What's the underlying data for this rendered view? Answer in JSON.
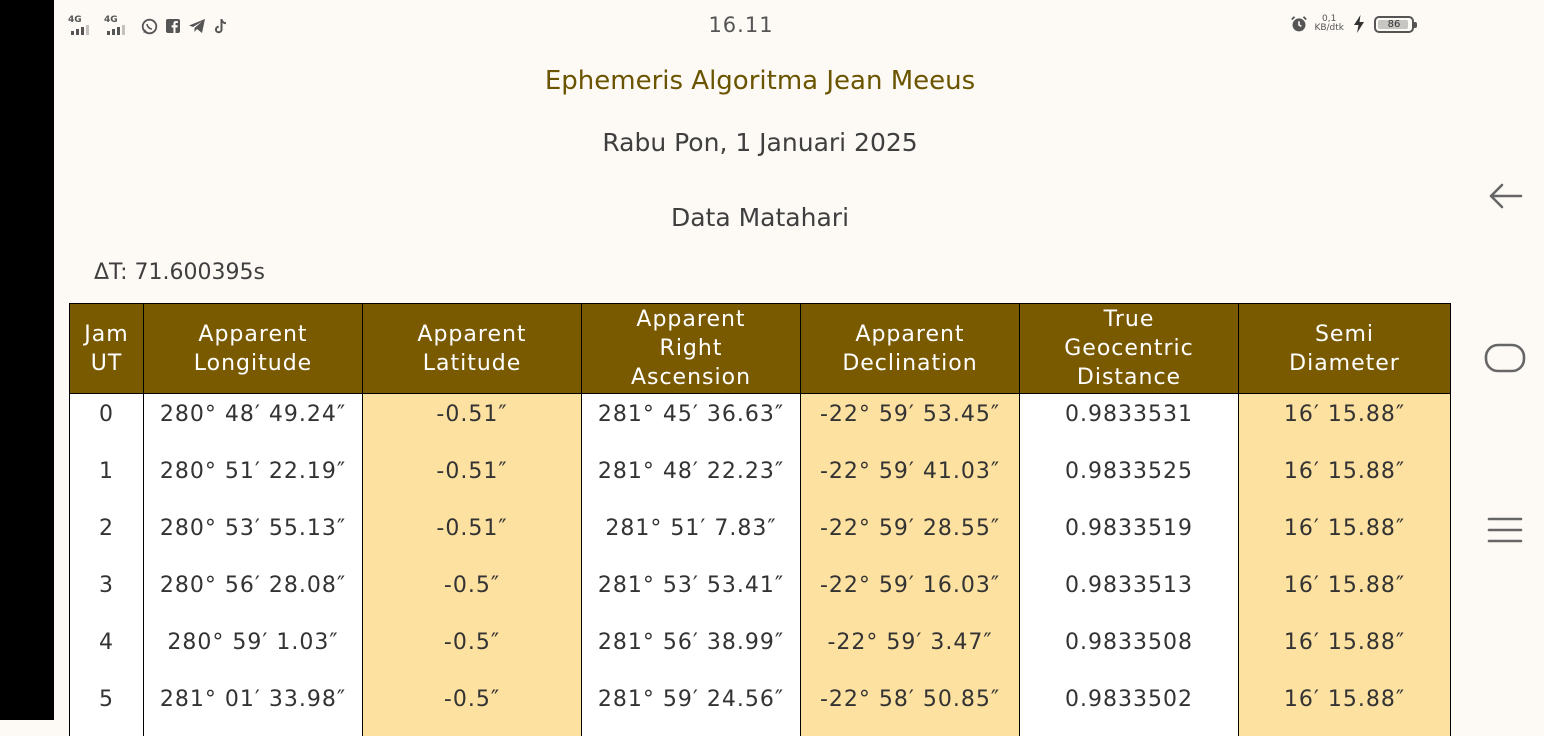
{
  "status_bar": {
    "time": "16.11",
    "network_1": "4G",
    "network_2": "4G",
    "speed_value": "0,1",
    "speed_unit": "KB/dtk",
    "battery": "86"
  },
  "app": {
    "title": "Ephemeris Algoritma Jean Meeus",
    "date": "Rabu Pon, 1 Januari 2025",
    "section": "Data Matahari",
    "delta_t": "ΔT: 71.600395s"
  },
  "table": {
    "headers": [
      [
        "Jam",
        "UT"
      ],
      [
        "Apparent",
        "Longitude"
      ],
      [
        "Apparent",
        "Latitude"
      ],
      [
        "Apparent",
        "Right",
        "Ascension"
      ],
      [
        "Apparent",
        "Declination"
      ],
      [
        "True",
        "Geocentric",
        "Distance"
      ],
      [
        "Semi",
        "Diameter"
      ]
    ],
    "rows": [
      [
        "0",
        "280° 48′ 49.24″",
        "-0.51″",
        "281° 45′ 36.63″",
        "-22° 59′ 53.45″",
        "0.9833531",
        "16′ 15.88″"
      ],
      [
        "1",
        "280° 51′ 22.19″",
        "-0.51″",
        "281° 48′ 22.23″",
        "-22° 59′ 41.03″",
        "0.9833525",
        "16′ 15.88″"
      ],
      [
        "2",
        "280° 53′ 55.13″",
        "-0.51″",
        "281° 51′ 7.83″",
        "-22° 59′ 28.55″",
        "0.9833519",
        "16′ 15.88″"
      ],
      [
        "3",
        "280° 56′ 28.08″",
        "-0.5″",
        "281° 53′ 53.41″",
        "-22° 59′ 16.03″",
        "0.9833513",
        "16′ 15.88″"
      ],
      [
        "4",
        "280° 59′ 1.03″",
        "-0.5″",
        "281° 56′ 38.99″",
        "-22° 59′ 3.47″",
        "0.9833508",
        "16′ 15.88″"
      ],
      [
        "5",
        "281° 01′ 33.98″",
        "-0.5″",
        "281° 59′ 24.56″",
        "-22° 58′ 50.85″",
        "0.9833502",
        "16′ 15.88″"
      ]
    ]
  },
  "icons": {
    "status_left": [
      "whatsapp-icon",
      "facebook-icon",
      "telegram-icon",
      "tiktok-icon"
    ],
    "status_right": [
      "alarm-icon",
      "charging-icon",
      "battery-icon"
    ],
    "nav": [
      "back-icon",
      "home-icon",
      "menu-icon"
    ]
  },
  "colors": {
    "header_bg": "#7a5a00",
    "title": "#6b5400",
    "shaded_column": "#fde1a0",
    "background": "#fdf9f5"
  }
}
